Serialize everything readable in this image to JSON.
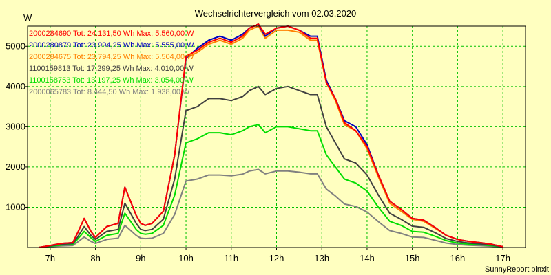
{
  "chart_data": {
    "type": "line",
    "title": "Wechselrichtervergleich vom 02.03.2020",
    "ylabel": "W",
    "xlabel": "",
    "footer": "SunnyReport pinxit",
    "xlim": [
      6.5,
      17.5
    ],
    "ylim": [
      0,
      5500
    ],
    "grid": true,
    "x_ticks": [
      7,
      8,
      9,
      10,
      11,
      12,
      13,
      14,
      15,
      16,
      17
    ],
    "x_tick_labels": [
      "7h",
      "8h",
      "9h",
      "10h",
      "11h",
      "12h",
      "13h",
      "14h",
      "15h",
      "16h",
      "17h"
    ],
    "y_ticks": [
      1000,
      2000,
      3000,
      4000,
      5000
    ],
    "y_tick_labels": [
      "1000",
      "2000",
      "3000",
      "4000",
      "5000"
    ],
    "x": [
      6.75,
      7.0,
      7.25,
      7.5,
      7.6,
      7.75,
      7.9,
      8.0,
      8.25,
      8.5,
      8.65,
      8.9,
      9.0,
      9.1,
      9.25,
      9.5,
      9.75,
      10.0,
      10.25,
      10.5,
      10.75,
      11.0,
      11.25,
      11.4,
      11.6,
      11.75,
      12.0,
      12.25,
      12.5,
      12.75,
      12.9,
      13.1,
      13.3,
      13.5,
      13.75,
      14.0,
      14.25,
      14.5,
      14.75,
      15.0,
      15.25,
      15.5,
      15.75,
      16.0,
      16.25,
      16.5,
      16.75,
      17.0
    ],
    "series": [
      {
        "name": "2000284690",
        "label": "2000284690 Tot: 24.131,50 Wh Max: 5.560,00 W",
        "color": "#ff0000",
        "values": [
          0,
          50,
          100,
          120,
          350,
          720,
          400,
          250,
          520,
          600,
          1500,
          800,
          600,
          550,
          600,
          900,
          2300,
          4750,
          4900,
          5100,
          5200,
          5100,
          5250,
          5450,
          5550,
          5300,
          5450,
          5500,
          5400,
          5200,
          5200,
          4100,
          3700,
          3100,
          2900,
          2500,
          1800,
          1150,
          950,
          720,
          680,
          500,
          300,
          200,
          150,
          120,
          80,
          20
        ]
      },
      {
        "name": "2000280879",
        "label": "2000280879 Tot: 23.994,25 Wh Max: 5.555,00 W",
        "color": "#0000c0",
        "values": [
          0,
          50,
          100,
          120,
          350,
          720,
          400,
          250,
          520,
          600,
          1500,
          800,
          600,
          550,
          600,
          900,
          2300,
          4700,
          4950,
          5150,
          5250,
          5150,
          5300,
          5450,
          5550,
          5250,
          5450,
          5500,
          5400,
          5250,
          5250,
          4150,
          3700,
          3150,
          3000,
          2550,
          1800,
          1150,
          950,
          720,
          680,
          500,
          300,
          200,
          150,
          120,
          80,
          20
        ]
      },
      {
        "name": "2000284675",
        "label": "2000284675 Tot: 23.794,25 Wh Max: 5.504,00 W",
        "color": "#ff8000",
        "values": [
          0,
          50,
          100,
          120,
          350,
          720,
          400,
          250,
          520,
          600,
          1500,
          800,
          600,
          550,
          600,
          900,
          2300,
          4700,
          4850,
          5050,
          5150,
          5050,
          5200,
          5400,
          5504,
          5200,
          5400,
          5400,
          5350,
          5150,
          5150,
          4100,
          3650,
          3050,
          2900,
          2450,
          1750,
          1100,
          900,
          700,
          650,
          480,
          300,
          200,
          150,
          120,
          80,
          20
        ]
      },
      {
        "name": "1100159813",
        "label": "1100159813 Tot: 17.299,25 Wh Max: 4.010,00 W",
        "color": "#404040",
        "values": [
          0,
          40,
          80,
          100,
          250,
          520,
          300,
          200,
          400,
          450,
          1100,
          600,
          450,
          420,
          450,
          700,
          1700,
          3400,
          3500,
          3700,
          3700,
          3650,
          3750,
          3900,
          4000,
          3800,
          3950,
          4000,
          3900,
          3800,
          3800,
          3000,
          2600,
          2200,
          2100,
          1800,
          1300,
          850,
          700,
          530,
          500,
          370,
          220,
          150,
          110,
          90,
          60,
          15
        ]
      },
      {
        "name": "1100158753",
        "label": "1100158753 Tot: 13.197,25 Wh Max: 3.054,00 W",
        "color": "#00dd00",
        "values": [
          0,
          30,
          60,
          80,
          200,
          400,
          240,
          150,
          300,
          350,
          850,
          450,
          350,
          330,
          350,
          550,
          1300,
          2600,
          2700,
          2850,
          2850,
          2800,
          2900,
          3000,
          3054,
          2850,
          3000,
          3000,
          2950,
          2900,
          2900,
          2300,
          2000,
          1700,
          1600,
          1400,
          1000,
          650,
          550,
          400,
          380,
          280,
          170,
          110,
          85,
          70,
          45,
          10
        ]
      },
      {
        "name": "2000065783",
        "label": "2000065783 Tot: 8.444,50 Wh Max: 1.938,00 W",
        "color": "#808080",
        "values": [
          0,
          20,
          40,
          50,
          130,
          260,
          150,
          100,
          200,
          230,
          550,
          300,
          230,
          220,
          230,
          350,
          820,
          1650,
          1700,
          1800,
          1800,
          1780,
          1820,
          1900,
          1938,
          1830,
          1900,
          1900,
          1870,
          1830,
          1830,
          1450,
          1280,
          1080,
          1020,
          880,
          640,
          420,
          350,
          260,
          250,
          180,
          110,
          75,
          55,
          45,
          30,
          7
        ]
      }
    ]
  }
}
